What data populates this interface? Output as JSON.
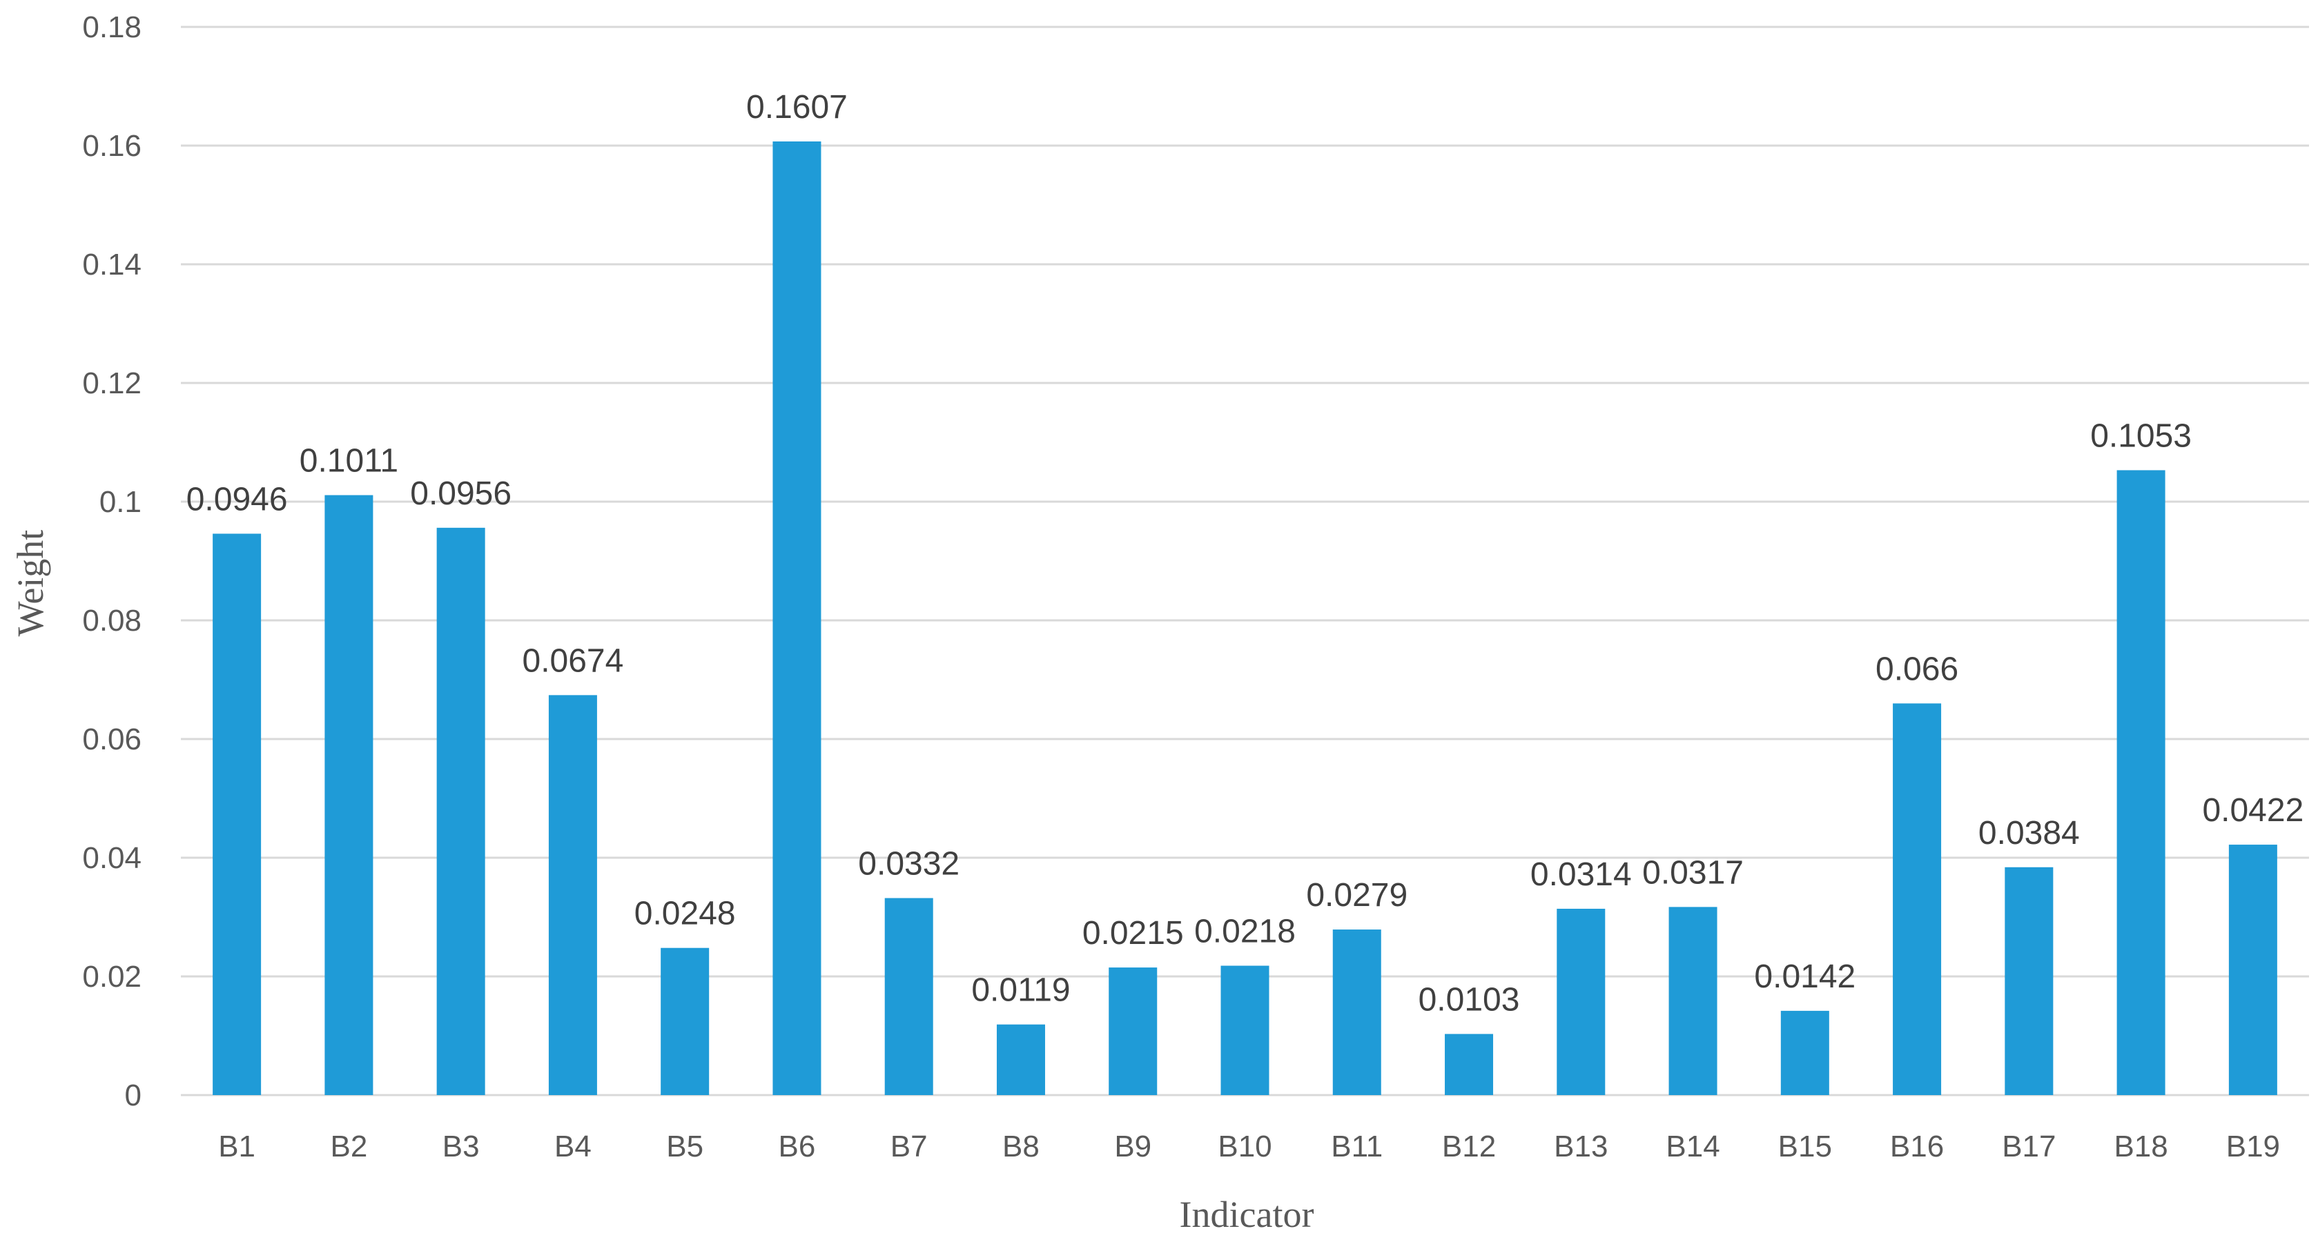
{
  "chart_data": {
    "type": "bar",
    "title": "",
    "xlabel": "Indicator",
    "ylabel": "Weight",
    "categories": [
      "B1",
      "B2",
      "B3",
      "B4",
      "B5",
      "B6",
      "B7",
      "B8",
      "B9",
      "B10",
      "B11",
      "B12",
      "B13",
      "B14",
      "B15",
      "B16",
      "B17",
      "B18",
      "B19"
    ],
    "values": [
      0.0946,
      0.1011,
      0.0956,
      0.0674,
      0.0248,
      0.1607,
      0.0332,
      0.0119,
      0.0215,
      0.0218,
      0.0279,
      0.0103,
      0.0314,
      0.0317,
      0.0142,
      0.066,
      0.0384,
      0.1053,
      0.0422
    ],
    "data_labels": [
      "0.0946",
      "0.1011",
      "0.0956",
      "0.0674",
      "0.0248",
      "0.1607",
      "0.0332",
      "0.0119",
      "0.0215",
      "0.0218",
      "0.0279",
      "0.0103",
      "0.0314",
      "0.0317",
      "0.0142",
      "0.066",
      "0.0384",
      "0.1053",
      "0.0422"
    ],
    "ylim": [
      0,
      0.18
    ],
    "yticks": [
      0,
      0.02,
      0.04,
      0.06,
      0.08,
      0.1,
      0.12,
      0.14,
      0.16,
      0.18
    ],
    "ytick_labels": [
      "0",
      "0.02",
      "0.04",
      "0.06",
      "0.08",
      "0.1",
      "0.12",
      "0.14",
      "0.16",
      "0.18"
    ],
    "grid": true,
    "legend": "none",
    "bar_color": "#1f9bd7",
    "grid_color": "#d9d9d9"
  }
}
